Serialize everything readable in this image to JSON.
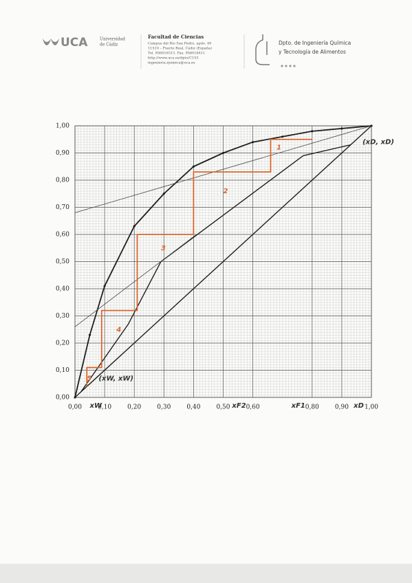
{
  "header": {
    "logo": "UCA",
    "university": [
      "Universidad",
      "de Cádiz"
    ],
    "faculty": "Facultad de Ciencias",
    "address": [
      "Campus del Río San Pedro, apdo. 40",
      "11510 – Puerto Real, Cádiz (España)",
      "Tel. 956016313. Fax. 956016411",
      "http://www.uca.es/dpto/C153",
      "ingenieria.quimica@uca.es"
    ],
    "department": [
      "Dpto. de Ingeniería Química",
      "y Tecnología de Alimentos"
    ]
  },
  "chart_data": {
    "type": "line",
    "xlim": [
      0,
      1
    ],
    "ylim": [
      0,
      1
    ],
    "xticks": [
      {
        "value": 0,
        "label": "0,00"
      },
      {
        "value": 0.1,
        "label": "0,10"
      },
      {
        "value": 0.2,
        "label": "0,20"
      },
      {
        "value": 0.3,
        "label": "0,30"
      },
      {
        "value": 0.4,
        "label": "0,40"
      },
      {
        "value": 0.5,
        "label": "0,50"
      },
      {
        "value": 0.6,
        "label": "0,60"
      },
      {
        "value": 0.8,
        "label": "0,80"
      },
      {
        "value": 0.9,
        "label": "0,90"
      },
      {
        "value": 1,
        "label": "1,00"
      }
    ],
    "yticks": [
      {
        "value": 0,
        "label": "0,00"
      },
      {
        "value": 0.1,
        "label": "0,10"
      },
      {
        "value": 0.2,
        "label": "0,20"
      },
      {
        "value": 0.3,
        "label": "0,30"
      },
      {
        "value": 0.4,
        "label": "0,40"
      },
      {
        "value": 0.5,
        "label": "0,50"
      },
      {
        "value": 0.6,
        "label": "0,60"
      },
      {
        "value": 0.7,
        "label": "0,70"
      },
      {
        "value": 0.8,
        "label": "0,80"
      },
      {
        "value": 0.9,
        "label": "0,90"
      },
      {
        "value": 1,
        "label": "1,00"
      }
    ],
    "grid": true,
    "series": [
      {
        "color": "#1e1e1e",
        "width": 1.8,
        "markers": true,
        "x": [
          0,
          0.05,
          0.1,
          0.2,
          0.3,
          0.4,
          0.5,
          0.6,
          0.7,
          0.8,
          0.9,
          1
        ],
        "values": [
          0,
          0.23,
          0.41,
          0.63,
          0.75,
          0.85,
          0.9,
          0.94,
          0.96,
          0.98,
          0.99,
          1
        ]
      },
      {
        "color": "#1e1e1e",
        "width": 1.4,
        "markers": false,
        "x": [
          0,
          1
        ],
        "values": [
          0,
          1
        ]
      },
      {
        "color": "#1e1e1e",
        "width": 1.4,
        "markers": false,
        "x": [
          0.02,
          0.18,
          0.29,
          0.77,
          0.93
        ],
        "values": [
          0.02,
          0.27,
          0.5,
          0.89,
          0.93
        ]
      },
      {
        "color": "#444444",
        "width": 0.8,
        "markers": false,
        "x": [
          0,
          1
        ],
        "values": [
          0.68,
          1
        ]
      },
      {
        "color": "#444444",
        "width": 0.8,
        "markers": false,
        "x": [
          0,
          0.41
        ],
        "values": [
          0.26,
          0.6
        ]
      },
      {
        "color": "#d9662a",
        "width": 1.8,
        "markers": false,
        "x": [
          0.8,
          0.66,
          0.66,
          0.4,
          0.4,
          0.21,
          0.21,
          0.09,
          0.09,
          0.04,
          0.04
        ],
        "values": [
          0.95,
          0.95,
          0.83,
          0.83,
          0.6,
          0.6,
          0.32,
          0.32,
          0.11,
          0.11,
          0.04
        ]
      }
    ],
    "annotations": [
      {
        "text": "1",
        "x": 0.68,
        "y": 0.92,
        "color": "#d9662a"
      },
      {
        "text": "2",
        "x": 0.5,
        "y": 0.76,
        "color": "#d9662a"
      },
      {
        "text": "3",
        "x": 0.29,
        "y": 0.55,
        "color": "#d9662a"
      },
      {
        "text": "4",
        "x": 0.14,
        "y": 0.25,
        "color": "#d9662a"
      },
      {
        "text": "5",
        "x": 0.04,
        "y": 0.07,
        "color": "#d9662a"
      },
      {
        "text": "(xD, xD)",
        "x": 0.97,
        "y": 0.94,
        "color": "#333333"
      },
      {
        "text": "(xW, xW)",
        "x": 0.08,
        "y": 0.07,
        "color": "#333333"
      },
      {
        "text": "xW",
        "x": 0.05,
        "y": -0.03,
        "color": "#333333"
      },
      {
        "text": "xF2",
        "x": 0.53,
        "y": -0.03,
        "color": "#333333"
      },
      {
        "text": "xF1",
        "x": 0.73,
        "y": -0.03,
        "color": "#333333"
      },
      {
        "text": "xD",
        "x": 0.94,
        "y": -0.03,
        "color": "#333333"
      }
    ]
  }
}
